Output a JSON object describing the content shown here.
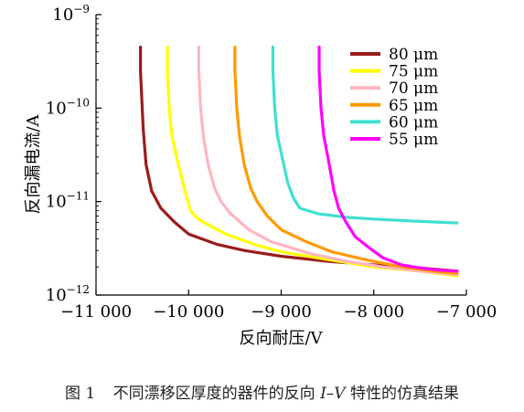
{
  "chart_data": {
    "type": "line",
    "xlabel": "反向耐压/V",
    "ylabel": "反向漏电流/A",
    "x_scale": "linear",
    "y_scale": "log",
    "xlim": [
      -11000,
      -7000
    ],
    "ylim": [
      1e-12,
      1e-09
    ],
    "x_ticks": [
      -11000,
      -10000,
      -9000,
      -8000,
      -7000
    ],
    "x_tick_labels": [
      "−11 000",
      "−10 000",
      "−9 000",
      "−8 000",
      "−7 000"
    ],
    "y_ticks": [
      1e-12,
      1e-11,
      1e-10,
      1e-09
    ],
    "y_tick_labels": [
      {
        "base": "10",
        "exp": "−12"
      },
      {
        "base": "10",
        "exp": "−11"
      },
      {
        "base": "10",
        "exp": "−10"
      },
      {
        "base": "10",
        "exp": "−9"
      }
    ],
    "grid": false,
    "legend_position": "top-right",
    "series": [
      {
        "name": "80 μm",
        "color": "#9b1b1b",
        "x": [
          -10520,
          -10520,
          -10490,
          -10460,
          -10400,
          -10300,
          -10150,
          -10000,
          -9700,
          -9400,
          -9000,
          -8500,
          -8000,
          -7500,
          -7100
        ],
        "y": [
          4.5e-10,
          2.5e-10,
          6e-11,
          2.5e-11,
          1.3e-11,
          8.5e-12,
          6e-12,
          4.5e-12,
          3.5e-12,
          3e-12,
          2.6e-12,
          2.3e-12,
          2.1e-12,
          1.95e-12,
          1.8e-12
        ]
      },
      {
        "name": "75 μm",
        "color": "#ffff00",
        "x": [
          -10230,
          -10230,
          -10210,
          -10180,
          -10130,
          -10040,
          -9980,
          -9900,
          -9600,
          -9300,
          -9000,
          -8500,
          -8000,
          -7500,
          -7100
        ],
        "y": [
          4.5e-10,
          2.5e-10,
          1e-10,
          5e-11,
          3e-11,
          1.3e-11,
          8e-12,
          6.5e-12,
          4.5e-12,
          3.5e-12,
          2.9e-12,
          2.4e-12,
          2e-12,
          1.8e-12,
          1.6e-12
        ]
      },
      {
        "name": "70 μm",
        "color": "#ffb6c1",
        "x": [
          -9890,
          -9890,
          -9870,
          -9840,
          -9790,
          -9720,
          -9650,
          -9550,
          -9350,
          -9100,
          -8700,
          -8300,
          -7900,
          -7500,
          -7100
        ],
        "y": [
          4.5e-10,
          2.5e-10,
          1e-10,
          5e-11,
          2.5e-11,
          1.4e-11,
          1e-11,
          7.5e-12,
          5e-12,
          3.7e-12,
          2.8e-12,
          2.3e-12,
          2e-12,
          1.8e-12,
          1.65e-12
        ]
      },
      {
        "name": "65 μm",
        "color": "#ff9a00",
        "x": [
          -9500,
          -9500,
          -9480,
          -9450,
          -9400,
          -9330,
          -9260,
          -9150,
          -9000,
          -8750,
          -8450,
          -8100,
          -7700,
          -7350,
          -7100
        ],
        "y": [
          4.5e-10,
          2.5e-10,
          1e-10,
          5e-11,
          2.5e-11,
          1.4e-11,
          1e-11,
          7e-12,
          5e-12,
          3.8e-12,
          2.9e-12,
          2.4e-12,
          2e-12,
          1.8e-12,
          1.7e-12
        ]
      },
      {
        "name": "60 μm",
        "color": "#40e0d0",
        "x": [
          -9090,
          -9090,
          -9070,
          -9040,
          -8990,
          -8930,
          -8870,
          -8800,
          -8600,
          -8300,
          -8000,
          -7600,
          -7100
        ],
        "y": [
          4.5e-10,
          2.5e-10,
          1e-10,
          5e-11,
          3e-11,
          1.6e-11,
          1.1e-11,
          8.5e-12,
          7.4e-12,
          6.8e-12,
          6.5e-12,
          6.2e-12,
          5.9e-12
        ]
      },
      {
        "name": "55 μm",
        "color": "#ff00ff",
        "x": [
          -8590,
          -8590,
          -8570,
          -8540,
          -8490,
          -8430,
          -8380,
          -8300,
          -8200,
          -8050,
          -7900,
          -7700,
          -7500,
          -7300,
          -7100
        ],
        "y": [
          4.5e-10,
          2.5e-10,
          1e-10,
          5e-11,
          2.8e-11,
          1.3e-11,
          8.5e-12,
          6e-12,
          4.2e-12,
          3.2e-12,
          2.5e-12,
          2.1e-12,
          1.95e-12,
          1.85e-12,
          1.8e-12
        ]
      }
    ]
  },
  "caption": {
    "number": "图 1",
    "text_before": "不同漂移区厚度的器件的反向 ",
    "italic": "I–V",
    "text_after": " 特性的仿真结果"
  }
}
